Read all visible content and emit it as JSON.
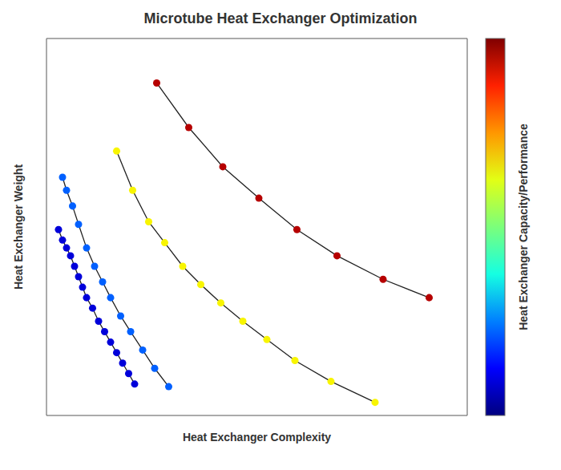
{
  "chart_data": {
    "type": "scatter",
    "title": "Microtube Heat Exchanger Optimization",
    "x_label": "Heat Exchanger Complexity",
    "y_label": "Heat Exchanger Weight",
    "colorbar_label": "Heat Exchanger Capacity/Performance",
    "colorbar_colors": [
      "#00007f",
      "#0000ff",
      "#007fff",
      "#15ffe2",
      "#7bff7b",
      "#e2ff15",
      "#ff9700",
      "#ff2100",
      "#800000"
    ],
    "line_color": "#222222",
    "marker": "circle",
    "line_style": "solid",
    "grid": true,
    "tick_labels": false,
    "xlim": [
      0.0,
      1.05
    ],
    "ylim": [
      0.28,
      1.0
    ],
    "xticks": [
      0.0,
      0.2,
      0.4,
      0.6,
      0.8,
      1.0
    ],
    "yticks": [
      0.3,
      0.4,
      0.5,
      0.6,
      0.7,
      0.8,
      0.9,
      1.0
    ],
    "series": [
      {
        "color": "#0000da",
        "x": [
          0.03,
          0.04,
          0.05,
          0.06,
          0.07,
          0.08,
          0.09,
          0.1,
          0.115,
          0.13,
          0.145,
          0.16,
          0.175,
          0.19,
          0.205,
          0.22
        ],
        "values": [
          0.635,
          0.615,
          0.6,
          0.585,
          0.565,
          0.545,
          0.525,
          0.505,
          0.485,
          0.46,
          0.44,
          0.42,
          0.4,
          0.38,
          0.36,
          0.34
        ]
      },
      {
        "color": "#0060ff",
        "x": [
          0.04,
          0.05,
          0.065,
          0.08,
          0.1,
          0.12,
          0.14,
          0.16,
          0.185,
          0.21,
          0.24,
          0.27,
          0.305
        ],
        "values": [
          0.735,
          0.71,
          0.68,
          0.645,
          0.6,
          0.565,
          0.535,
          0.505,
          0.47,
          0.44,
          0.405,
          0.37,
          0.335
        ]
      },
      {
        "color": "#f8f500",
        "x": [
          0.175,
          0.215,
          0.255,
          0.295,
          0.34,
          0.385,
          0.435,
          0.49,
          0.55,
          0.62,
          0.71,
          0.82
        ],
        "values": [
          0.785,
          0.71,
          0.65,
          0.61,
          0.565,
          0.53,
          0.495,
          0.46,
          0.425,
          0.385,
          0.345,
          0.305
        ]
      },
      {
        "color": "#b60000",
        "x": [
          0.275,
          0.355,
          0.44,
          0.53,
          0.625,
          0.725,
          0.84,
          0.955
        ],
        "values": [
          0.915,
          0.83,
          0.755,
          0.695,
          0.635,
          0.585,
          0.54,
          0.505
        ]
      }
    ]
  }
}
